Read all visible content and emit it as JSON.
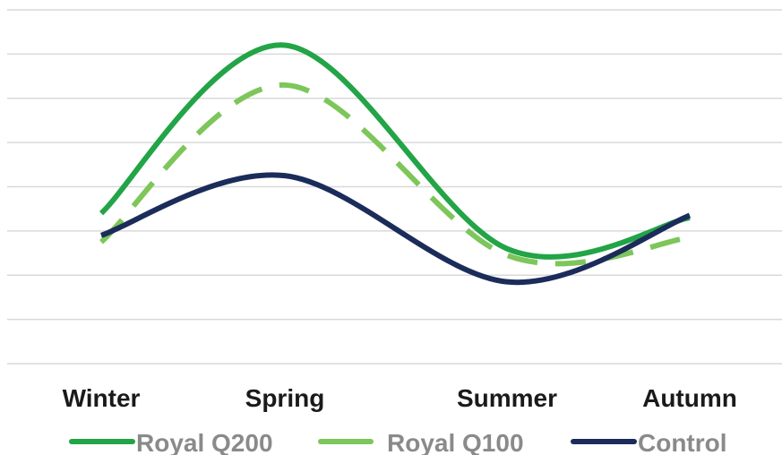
{
  "chart_data": {
    "type": "line",
    "smooth": true,
    "categories": [
      "Winter",
      "Spring",
      "Summer",
      "Autumn"
    ],
    "ylim": [
      0,
      8
    ],
    "grid": true,
    "legend_position": "bottom",
    "series": [
      {
        "name": "Royal Q200",
        "values": [
          3.4,
          7.2,
          2.6,
          3.3
        ],
        "color": "#22a447",
        "dash": "solid"
      },
      {
        "name": "Royal Q100",
        "values": [
          2.75,
          6.3,
          2.45,
          2.85
        ],
        "color": "#7dc65a",
        "dash": "dashed"
      },
      {
        "name": "Control",
        "values": [
          2.9,
          4.25,
          1.85,
          3.35
        ],
        "color": "#1b2c5a",
        "dash": "solid"
      }
    ]
  }
}
